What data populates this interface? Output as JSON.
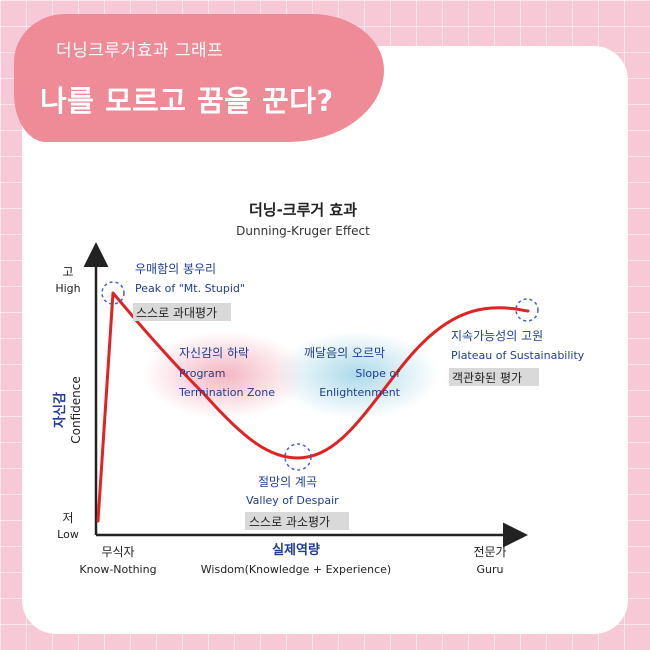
{
  "header": {
    "subtitle": "더닝크루거효과 그래프",
    "headline": "나를 모르고 꿈을 꾼다?"
  },
  "diagram": {
    "title_ko": "더닝-크루거 효과",
    "title_en": "Dunning-Kruger Effect",
    "y_axis": {
      "label_ko": "자신감",
      "label_en": "Confidence",
      "high_ko": "고",
      "high_en": "High",
      "low_ko": "저",
      "low_en": "Low"
    },
    "x_axis": {
      "label_ko": "실제역량",
      "label_en": "Wisdom(Knowledge + Experience)",
      "start_ko": "무식자",
      "start_en": "Know-Nothing",
      "end_ko": "전문가",
      "end_en": "Guru"
    },
    "points": {
      "peak": {
        "ko": "우매함의 봉우리",
        "en": "Peak of \"Mt. Stupid\"",
        "tag": "스스로 과대평가"
      },
      "valley": {
        "ko": "절망의 계곡",
        "en": "Valley of Despair",
        "tag": "스스로 과소평가"
      },
      "plateau": {
        "ko": "지속가능성의 고원",
        "en": "Plateau of Sustainability",
        "tag": "객관화된 평가"
      }
    },
    "zones": {
      "decline": {
        "ko": "자신감의 하락",
        "en_line1": "Program",
        "en_line2": "Termination Zone"
      },
      "enlightenment": {
        "ko": "깨달음의 오르막",
        "en_line1": "Slope of",
        "en_line2": "Enlightenment"
      }
    },
    "colors": {
      "curve": "#e02424",
      "text_blue": "#1f3d92",
      "marker": "#4a5fc1",
      "pink_zone": "#f2a9b7",
      "blue_zone": "#9ed3e6",
      "tag_bg": "#d9d9d9"
    }
  }
}
